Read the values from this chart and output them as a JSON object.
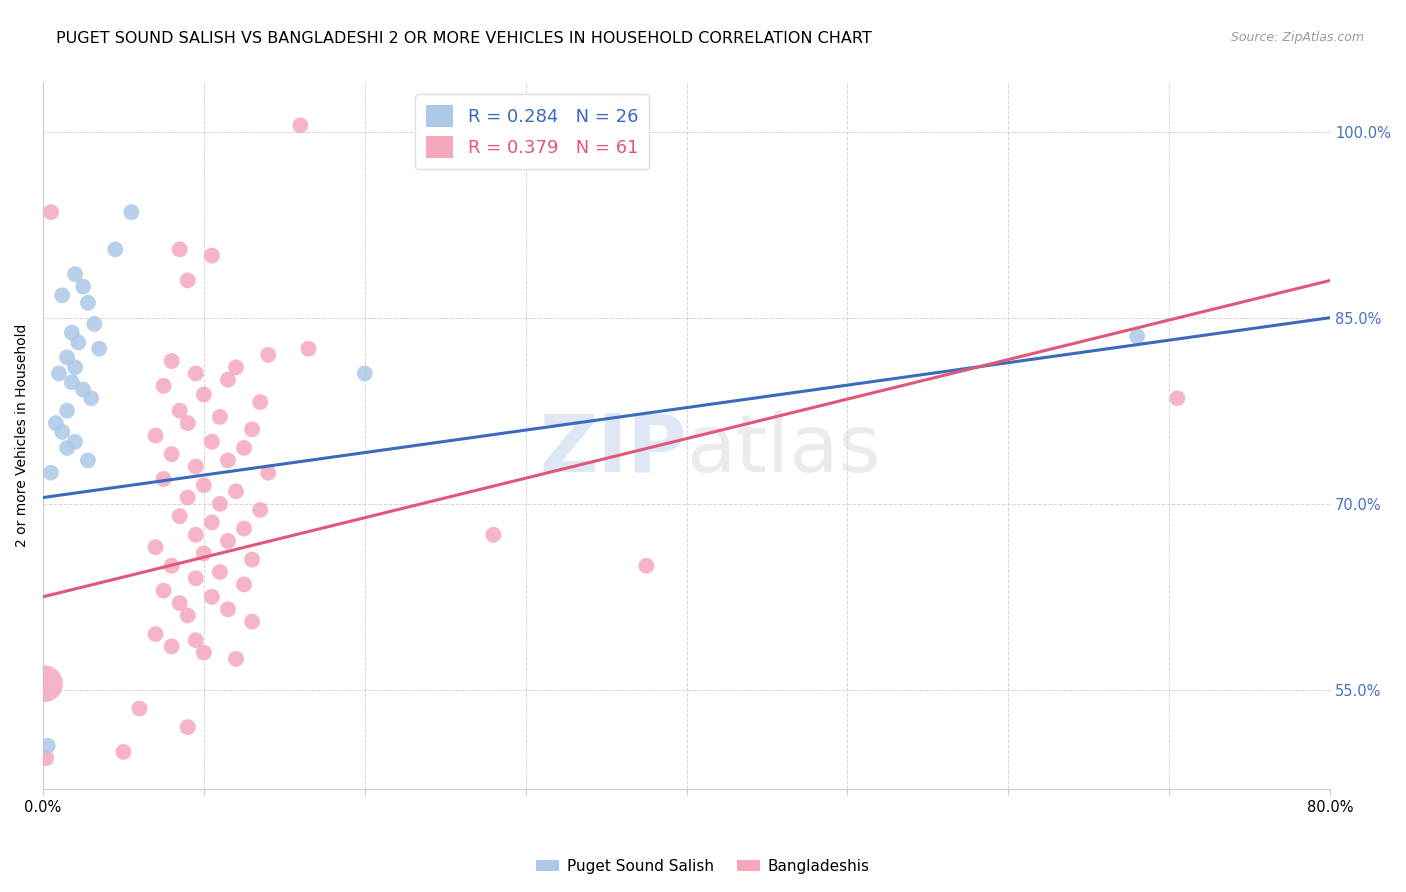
{
  "title": "PUGET SOUND SALISH VS BANGLADESHI 2 OR MORE VEHICLES IN HOUSEHOLD CORRELATION CHART",
  "source": "Source: ZipAtlas.com",
  "ylabel": "2 or more Vehicles in Household",
  "y_ticks": [
    55.0,
    70.0,
    85.0,
    100.0
  ],
  "y_tick_labels": [
    "55.0%",
    "70.0%",
    "85.0%",
    "100.0%"
  ],
  "xlim": [
    0.0,
    80.0
  ],
  "ylim": [
    47.0,
    104.0
  ],
  "blue_R": 0.284,
  "blue_N": 26,
  "pink_R": 0.379,
  "pink_N": 61,
  "blue_color": "#adc8e8",
  "pink_color": "#f5a8bc",
  "blue_line_color": "#3a6bbf",
  "pink_line_color": "#e05878",
  "legend_label_blue": "Puget Sound Salish",
  "legend_label_pink": "Bangladeshis",
  "watermark_zip": "ZIP",
  "watermark_atlas": "atlas",
  "title_fontsize": 11.5,
  "axis_label_fontsize": 10,
  "tick_fontsize": 10.5,
  "blue_points": [
    [
      5.5,
      93.5
    ],
    [
      4.5,
      90.5
    ],
    [
      2.0,
      88.5
    ],
    [
      2.5,
      87.5
    ],
    [
      1.2,
      86.8
    ],
    [
      2.8,
      86.2
    ],
    [
      3.2,
      84.5
    ],
    [
      1.8,
      83.8
    ],
    [
      2.2,
      83.0
    ],
    [
      3.5,
      82.5
    ],
    [
      1.5,
      81.8
    ],
    [
      2.0,
      81.0
    ],
    [
      1.0,
      80.5
    ],
    [
      1.8,
      79.8
    ],
    [
      2.5,
      79.2
    ],
    [
      3.0,
      78.5
    ],
    [
      1.5,
      77.5
    ],
    [
      0.8,
      76.5
    ],
    [
      1.2,
      75.8
    ],
    [
      2.0,
      75.0
    ],
    [
      1.5,
      74.5
    ],
    [
      2.8,
      73.5
    ],
    [
      0.5,
      72.5
    ],
    [
      20.0,
      80.5
    ],
    [
      68.0,
      83.5
    ],
    [
      0.3,
      50.5
    ]
  ],
  "pink_points": [
    [
      16.0,
      100.5
    ],
    [
      0.5,
      93.5
    ],
    [
      8.5,
      90.5
    ],
    [
      10.5,
      90.0
    ],
    [
      9.0,
      88.0
    ],
    [
      16.5,
      82.5
    ],
    [
      14.0,
      82.0
    ],
    [
      8.0,
      81.5
    ],
    [
      12.0,
      81.0
    ],
    [
      9.5,
      80.5
    ],
    [
      11.5,
      80.0
    ],
    [
      7.5,
      79.5
    ],
    [
      10.0,
      78.8
    ],
    [
      13.5,
      78.2
    ],
    [
      8.5,
      77.5
    ],
    [
      11.0,
      77.0
    ],
    [
      9.0,
      76.5
    ],
    [
      13.0,
      76.0
    ],
    [
      7.0,
      75.5
    ],
    [
      10.5,
      75.0
    ],
    [
      12.5,
      74.5
    ],
    [
      8.0,
      74.0
    ],
    [
      11.5,
      73.5
    ],
    [
      9.5,
      73.0
    ],
    [
      14.0,
      72.5
    ],
    [
      7.5,
      72.0
    ],
    [
      10.0,
      71.5
    ],
    [
      12.0,
      71.0
    ],
    [
      9.0,
      70.5
    ],
    [
      11.0,
      70.0
    ],
    [
      13.5,
      69.5
    ],
    [
      8.5,
      69.0
    ],
    [
      10.5,
      68.5
    ],
    [
      12.5,
      68.0
    ],
    [
      9.5,
      67.5
    ],
    [
      11.5,
      67.0
    ],
    [
      7.0,
      66.5
    ],
    [
      10.0,
      66.0
    ],
    [
      13.0,
      65.5
    ],
    [
      8.0,
      65.0
    ],
    [
      11.0,
      64.5
    ],
    [
      9.5,
      64.0
    ],
    [
      12.5,
      63.5
    ],
    [
      7.5,
      63.0
    ],
    [
      10.5,
      62.5
    ],
    [
      8.5,
      62.0
    ],
    [
      11.5,
      61.5
    ],
    [
      9.0,
      61.0
    ],
    [
      13.0,
      60.5
    ],
    [
      28.0,
      67.5
    ],
    [
      7.0,
      59.5
    ],
    [
      9.5,
      59.0
    ],
    [
      8.0,
      58.5
    ],
    [
      10.0,
      58.0
    ],
    [
      12.0,
      57.5
    ],
    [
      37.5,
      65.0
    ],
    [
      70.5,
      78.5
    ],
    [
      6.0,
      53.5
    ],
    [
      9.0,
      52.0
    ],
    [
      5.0,
      50.0
    ],
    [
      0.2,
      49.5
    ]
  ],
  "blue_line": {
    "x0": 0.0,
    "y0": 70.5,
    "x1": 80.0,
    "y1": 85.0
  },
  "pink_line": {
    "x0": 0.0,
    "y0": 62.5,
    "x1": 80.0,
    "y1": 88.0
  },
  "background_color": "#ffffff",
  "grid_color": "#cccccc",
  "right_tick_color": "#4472c4"
}
